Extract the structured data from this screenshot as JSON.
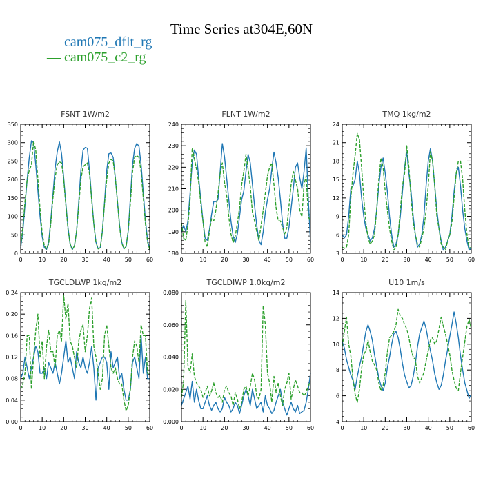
{
  "title": "Time Series at304E,60N",
  "colors": {
    "series1": "#1f77b4",
    "series2": "#2ca02c"
  },
  "legend": [
    {
      "label": "— cam075_dflt_rg",
      "color": "#1f77b4"
    },
    {
      "label": "— cam075_c2_rg",
      "color": "#2ca02c"
    }
  ],
  "chart_data": [
    {
      "type": "line",
      "title": "FSNT   1W/m2",
      "xlim": [
        0,
        60
      ],
      "ylim": [
        0,
        350
      ],
      "xticks": [
        "0",
        "10",
        "20",
        "30",
        "40",
        "50",
        "60"
      ],
      "yticks": [
        "0",
        "50",
        "100",
        "150",
        "200",
        "250",
        "300",
        "350"
      ],
      "series": [
        {
          "name": "cam075_dflt_rg",
          "style": "solid",
          "values": [
            15,
            60,
            130,
            200,
            260,
            305,
            300,
            240,
            170,
            100,
            45,
            15,
            10,
            30,
            90,
            160,
            230,
            275,
            302,
            270,
            205,
            135,
            70,
            25,
            10,
            20,
            60,
            140,
            225,
            280,
            287,
            285,
            225,
            150,
            80,
            30,
            12,
            15,
            60,
            140,
            225,
            270,
            272,
            260,
            205,
            140,
            75,
            30,
            12,
            18,
            60,
            150,
            240,
            285,
            298,
            290,
            240,
            165,
            90,
            35,
            10
          ]
        },
        {
          "name": "cam075_c2_rg",
          "style": "dashed",
          "values": [
            20,
            70,
            140,
            200,
            225,
            240,
            305,
            280,
            200,
            120,
            55,
            20,
            12,
            25,
            80,
            150,
            205,
            240,
            248,
            245,
            200,
            130,
            65,
            25,
            10,
            20,
            60,
            130,
            200,
            235,
            240,
            245,
            215,
            145,
            80,
            30,
            12,
            15,
            60,
            135,
            200,
            245,
            255,
            250,
            205,
            140,
            70,
            28,
            12,
            18,
            60,
            135,
            220,
            260,
            265,
            260,
            220,
            150,
            80,
            30,
            10
          ]
        }
      ]
    },
    {
      "type": "line",
      "title": "FLNT   1W/m2",
      "xlim": [
        0,
        60
      ],
      "ylim": [
        180,
        240
      ],
      "xticks": [
        "0",
        "10",
        "20",
        "30",
        "40",
        "50",
        "60"
      ],
      "yticks": [
        "180",
        "190",
        "200",
        "210",
        "220",
        "230",
        "240"
      ],
      "series": [
        {
          "name": "cam075_dflt_rg",
          "style": "solid",
          "values": [
            190,
            193,
            190,
            195,
            208,
            222,
            228,
            226,
            215,
            205,
            195,
            187,
            186,
            191,
            198,
            204,
            204,
            205,
            218,
            231,
            225,
            215,
            205,
            195,
            188,
            185,
            189,
            197,
            205,
            209,
            218,
            226,
            222,
            212,
            202,
            193,
            186,
            184,
            190,
            199,
            205,
            210,
            219,
            227,
            222,
            215,
            205,
            194,
            187,
            187,
            192,
            201,
            210,
            220,
            222,
            215,
            210,
            218,
            229,
            205,
            185
          ]
        },
        {
          "name": "cam075_c2_rg",
          "style": "dashed",
          "values": [
            194,
            187,
            186,
            193,
            205,
            229,
            224,
            219,
            213,
            203,
            195,
            185,
            183,
            190,
            196,
            195,
            200,
            208,
            217,
            222,
            213,
            207,
            197,
            189,
            185,
            188,
            194,
            201,
            212,
            218,
            226,
            219,
            211,
            199,
            195,
            190,
            186,
            193,
            200,
            208,
            216,
            220,
            222,
            212,
            201,
            195,
            195,
            192,
            189,
            192,
            202,
            212,
            218,
            214,
            210,
            200,
            197,
            212,
            216,
            197,
            195
          ]
        }
      ]
    },
    {
      "type": "line",
      "title": "TMQ   1kg/m2",
      "xlim": [
        0,
        60
      ],
      "ylim": [
        3,
        24
      ],
      "xticks": [
        "0",
        "10",
        "20",
        "30",
        "40",
        "50",
        "60"
      ],
      "yticks": [
        "3",
        "6",
        "9",
        "12",
        "15",
        "18",
        "21",
        "24"
      ],
      "series": [
        {
          "name": "cam075_dflt_rg",
          "style": "solid",
          "values": [
            6,
            5.5,
            6,
            9,
            13.5,
            14,
            15,
            18,
            16,
            12,
            9,
            7,
            6,
            5,
            5.5,
            7,
            10,
            14,
            17,
            18.5,
            16,
            13,
            9,
            6,
            4,
            4.5,
            6,
            9,
            13,
            17,
            19.5,
            16,
            13,
            9,
            6,
            4,
            4.5,
            6,
            9,
            14,
            18,
            20,
            18,
            14,
            10,
            7,
            5,
            3.5,
            4,
            5,
            6,
            9,
            13,
            16,
            17,
            14,
            10,
            7,
            5,
            3.5,
            4
          ]
        },
        {
          "name": "cam075_c2_rg",
          "style": "dashed",
          "values": [
            4,
            3.8,
            4,
            6,
            12,
            16,
            19,
            22.5,
            21.5,
            17,
            12,
            8,
            5.5,
            4.5,
            5,
            6,
            10,
            15,
            18.5,
            17,
            13,
            10,
            7,
            5,
            3.5,
            4,
            6,
            10,
            14,
            16,
            20.5,
            17,
            12,
            8,
            6,
            4.5,
            4,
            5.5,
            7,
            10,
            14,
            19.5,
            18,
            14,
            9,
            7,
            4.5,
            4,
            3.5,
            5,
            6,
            8,
            12,
            16,
            18,
            18,
            15,
            10,
            6,
            3.8,
            4
          ]
        }
      ]
    },
    {
      "type": "line",
      "title": "TGCLDLWP   1kg/m2",
      "xlim": [
        0,
        60
      ],
      "ylim": [
        0,
        0.24
      ],
      "xticks": [
        "0",
        "10",
        "20",
        "30",
        "40",
        "50",
        "60"
      ],
      "yticks": [
        "0.00",
        "0.04",
        "0.08",
        "0.12",
        "0.16",
        "0.20",
        "0.24"
      ],
      "series": [
        {
          "name": "cam075_dflt_rg",
          "style": "solid",
          "values": [
            0.08,
            0.09,
            0.12,
            0.1,
            0.08,
            0.1,
            0.12,
            0.14,
            0.13,
            0.09,
            0.09,
            0.1,
            0.08,
            0.11,
            0.1,
            0.09,
            0.11,
            0.09,
            0.07,
            0.09,
            0.12,
            0.15,
            0.11,
            0.12,
            0.1,
            0.08,
            0.13,
            0.11,
            0.1,
            0.12,
            0.1,
            0.09,
            0.11,
            0.14,
            0.1,
            0.04,
            0.1,
            0.11,
            0.12,
            0.12,
            0.11,
            0.06,
            0.13,
            0.1,
            0.11,
            0.12,
            0.08,
            0.09,
            0.06,
            0.04,
            0.04,
            0.06,
            0.11,
            0.12,
            0.1,
            0.08,
            0.16,
            0.09,
            0.12,
            0.08,
            0.08
          ]
        },
        {
          "name": "cam075_c2_rg",
          "style": "dashed",
          "values": [
            0.06,
            0.07,
            0.09,
            0.16,
            0.16,
            0.06,
            0.12,
            0.17,
            0.2,
            0.12,
            0.15,
            0.08,
            0.14,
            0.17,
            0.13,
            0.13,
            0.1,
            0.16,
            0.17,
            0.15,
            0.235,
            0.19,
            0.22,
            0.15,
            0.14,
            0.12,
            0.1,
            0.15,
            0.17,
            0.18,
            0.13,
            0.16,
            0.21,
            0.23,
            0.14,
            0.12,
            0.09,
            0.06,
            0.08,
            0.16,
            0.18,
            0.14,
            0.1,
            0.09,
            0.1,
            0.08,
            0.07,
            0.07,
            0.04,
            0.02,
            0.03,
            0.06,
            0.12,
            0.15,
            0.14,
            0.11,
            0.18,
            0.16,
            0.16,
            0.09,
            0.09
          ]
        }
      ]
    },
    {
      "type": "line",
      "title": "TGCLDIWP   1.0kg/m2",
      "xlim": [
        0,
        60
      ],
      "ylim": [
        0,
        0.08
      ],
      "xticks": [
        "0",
        "10",
        "20",
        "30",
        "40",
        "50",
        "60"
      ],
      "yticks": [
        "0.000",
        "0.020",
        "0.040",
        "0.060",
        "0.080"
      ],
      "series": [
        {
          "name": "cam075_dflt_rg",
          "style": "solid",
          "values": [
            0.01,
            0.014,
            0.018,
            0.022,
            0.014,
            0.025,
            0.012,
            0.02,
            0.013,
            0.008,
            0.008,
            0.012,
            0.016,
            0.01,
            0.007,
            0.01,
            0.012,
            0.008,
            0.006,
            0.008,
            0.015,
            0.012,
            0.01,
            0.006,
            0.008,
            0.012,
            0.01,
            0.005,
            0.01,
            0.016,
            0.02,
            0.016,
            0.01,
            0.02,
            0.014,
            0.008,
            0.01,
            0.012,
            0.006,
            0.016,
            0.01,
            0.008,
            0.005,
            0.007,
            0.012,
            0.016,
            0.02,
            0.012,
            0.008,
            0.004,
            0.008,
            0.012,
            0.008,
            0.006,
            0.01,
            0.005,
            0.006,
            0.007,
            0.012,
            0.02,
            0.03
          ]
        },
        {
          "name": "cam075_c2_rg",
          "style": "dashed",
          "values": [
            0.015,
            0.025,
            0.075,
            0.035,
            0.03,
            0.042,
            0.028,
            0.024,
            0.022,
            0.02,
            0.015,
            0.018,
            0.022,
            0.016,
            0.019,
            0.024,
            0.018,
            0.015,
            0.016,
            0.012,
            0.02,
            0.022,
            0.018,
            0.016,
            0.01,
            0.018,
            0.014,
            0.008,
            0.012,
            0.02,
            0.022,
            0.016,
            0.022,
            0.03,
            0.026,
            0.016,
            0.014,
            0.02,
            0.072,
            0.06,
            0.03,
            0.024,
            0.012,
            0.028,
            0.018,
            0.024,
            0.016,
            0.01,
            0.02,
            0.024,
            0.03,
            0.014,
            0.02,
            0.026,
            0.022,
            0.018,
            0.018,
            0.016,
            0.018,
            0.022,
            0.025
          ]
        }
      ]
    },
    {
      "type": "line",
      "title": "U10   1m/s",
      "xlim": [
        0,
        60
      ],
      "ylim": [
        4,
        14
      ],
      "xticks": [
        "0",
        "10",
        "20",
        "30",
        "40",
        "50",
        "60"
      ],
      "yticks": [
        "4",
        "6",
        "8",
        "10",
        "12",
        "14"
      ],
      "series": [
        {
          "name": "cam075_dflt_rg",
          "style": "solid",
          "values": [
            10.2,
            9.7,
            8.8,
            8.2,
            7.6,
            7.2,
            6.5,
            7.5,
            8.3,
            9.0,
            10.0,
            11.0,
            11.5,
            11.0,
            10.3,
            9.2,
            8.3,
            7.4,
            6.8,
            6.4,
            7.0,
            8.2,
            9.0,
            10.0,
            10.8,
            11.0,
            10.5,
            9.6,
            8.5,
            7.6,
            7.1,
            6.6,
            6.8,
            7.5,
            8.5,
            9.8,
            10.8,
            11.3,
            11.8,
            11.2,
            10.3,
            9.5,
            8.7,
            7.7,
            7.0,
            6.5,
            6.8,
            7.6,
            8.7,
            9.6,
            10.6,
            11.5,
            12.5,
            11.6,
            10.5,
            9.1,
            8.0,
            7.0,
            6.4,
            5.8,
            6.1
          ]
        },
        {
          "name": "cam075_c2_rg",
          "style": "dashed",
          "values": [
            9.8,
            11.0,
            12.1,
            10.0,
            9.1,
            7.3,
            6.1,
            5.5,
            6.5,
            8.1,
            9.2,
            9.5,
            10.3,
            9.4,
            8.7,
            8.4,
            8.0,
            7.0,
            6.4,
            6.8,
            7.8,
            9.4,
            10.5,
            10.7,
            11.0,
            11.5,
            12.7,
            12.2,
            12.0,
            11.5,
            11.2,
            10.5,
            9.6,
            9.0,
            8.8,
            7.5,
            7.0,
            7.4,
            7.8,
            8.7,
            9.5,
            10.3,
            10.5,
            10.0,
            10.3,
            11.2,
            12.1,
            11.4,
            10.8,
            10.0,
            9.2,
            8.0,
            7.2,
            6.6,
            6.4,
            7.8,
            9.0,
            10.2,
            11.4,
            11.9,
            11.2
          ]
        }
      ]
    }
  ]
}
